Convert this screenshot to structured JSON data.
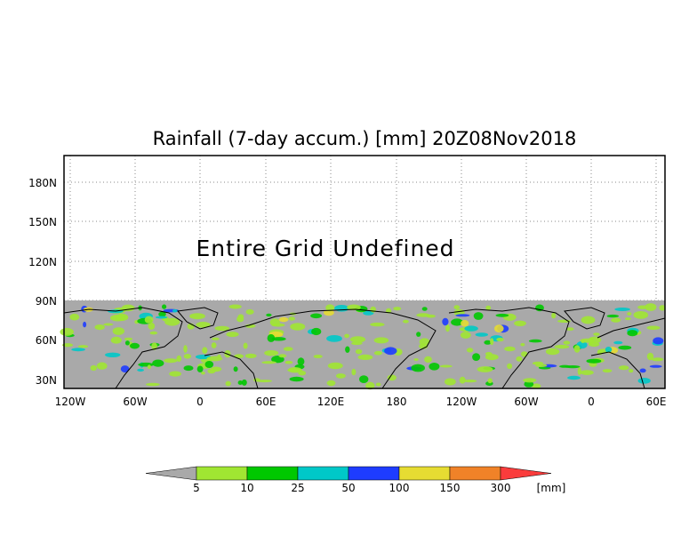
{
  "map": {
    "title": "Rainfall (7-day accum.) [mm] 20Z08Nov2018",
    "annotation": "Entire Grid Undefined",
    "lon_ticks": [
      "120W",
      "60W",
      "0",
      "60E",
      "120E",
      "180",
      "120W",
      "60W",
      "0",
      "60E"
    ],
    "lat_ticks": [
      "30N",
      "60N",
      "90N",
      "120N",
      "150N",
      "180N"
    ],
    "grid": true,
    "undefined_color": "#a9a9a9",
    "colorbar": {
      "colors": [
        "#a9a9a9",
        "#a0e632",
        "#00c800",
        "#00c8c8",
        "#1e3cff",
        "#e6dc32",
        "#f08228",
        "#fa3c3c"
      ],
      "labels": [
        "5",
        "10",
        "25",
        "50",
        "100",
        "150",
        "300"
      ],
      "unit": "[mm]"
    }
  }
}
